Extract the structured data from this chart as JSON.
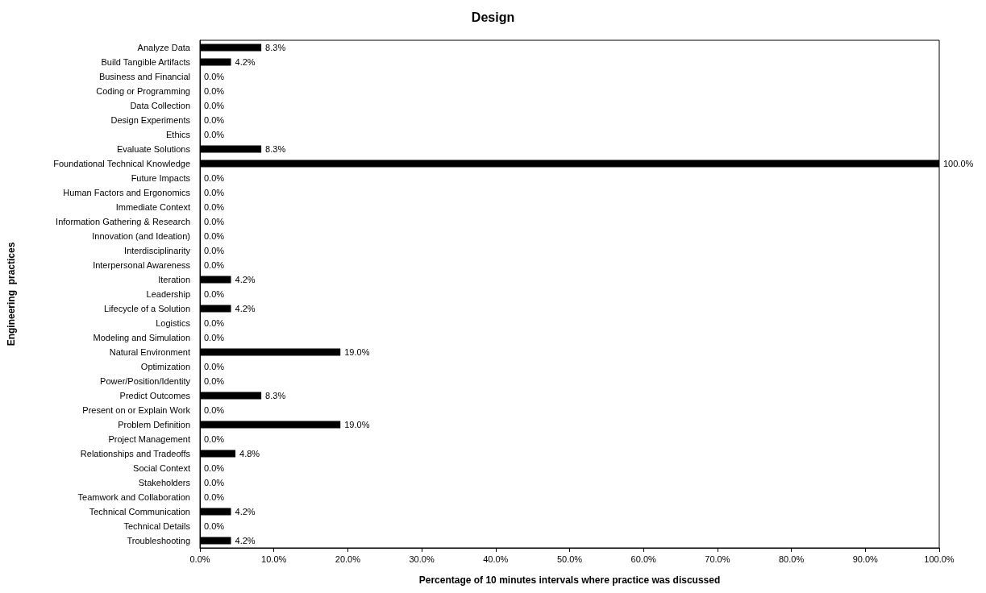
{
  "chart_data": {
    "type": "bar",
    "orientation": "horizontal",
    "title": "Design",
    "xlabel": "Percentage of 10 minutes intervals where practice was discussed",
    "ylabel": "Engineering  practices",
    "categories": [
      "Analyze Data",
      "Build Tangible Artifacts",
      "Business and Financial",
      "Coding or Programming",
      "Data Collection",
      "Design Experiments",
      "Ethics",
      "Evaluate Solutions",
      "Foundational Technical Knowledge",
      "Future Impacts",
      "Human Factors and Ergonomics",
      "Immediate Context",
      "Information Gathering & Research",
      "Innovation (and Ideation)",
      "Interdisciplinarity",
      "Interpersonal Awareness",
      "Iteration",
      "Leadership",
      "Lifecycle of a Solution",
      "Logistics",
      "Modeling and Simulation",
      "Natural Environment",
      "Optimization",
      "Power/Position/Identity",
      "Predict Outcomes",
      "Present on or Explain Work",
      "Problem Definition",
      "Project Management",
      "Relationships and Tradeoffs",
      "Social Context",
      "Stakeholders",
      "Teamwork and Collaboration",
      "Technical Communication",
      "Technical Details",
      "Troubleshooting"
    ],
    "values": [
      8.3,
      4.2,
      0,
      0,
      0,
      0,
      0,
      8.3,
      100,
      0,
      0,
      0,
      0,
      0,
      0,
      0,
      4.2,
      0,
      4.2,
      0,
      0,
      19.0,
      0,
      0,
      8.3,
      0,
      19.0,
      0,
      4.8,
      0,
      0,
      0,
      4.2,
      0,
      4.2
    ],
    "value_labels": [
      "8.3%",
      "4.2%",
      "0.0%",
      "0.0%",
      "0.0%",
      "0.0%",
      "0.0%",
      "8.3%",
      "100.0%",
      "0.0%",
      "0.0%",
      "0.0%",
      "0.0%",
      "0.0%",
      "0.0%",
      "0.0%",
      "4.2%",
      "0.0%",
      "4.2%",
      "0.0%",
      "0.0%",
      "19.0%",
      "0.0%",
      "0.0%",
      "8.3%",
      "0.0%",
      "19.0%",
      "0.0%",
      "4.8%",
      "0.0%",
      "0.0%",
      "0.0%",
      "4.2%",
      "0.0%",
      "4.2%"
    ],
    "color": "#000000",
    "xlim": [
      0,
      100
    ],
    "xticks": [
      {
        "value": 0,
        "label": "0.0%"
      },
      {
        "value": 10,
        "label": "10.0%"
      },
      {
        "value": 20,
        "label": "20.0%"
      },
      {
        "value": 30,
        "label": "30.0%"
      },
      {
        "value": 40,
        "label": "40.0%"
      },
      {
        "value": 50,
        "label": "50.0%"
      },
      {
        "value": 60,
        "label": "60.0%"
      },
      {
        "value": 70,
        "label": "70.0%"
      },
      {
        "value": 80,
        "label": "80.0%"
      },
      {
        "value": 90,
        "label": "90.0%"
      },
      {
        "value": 100,
        "label": "100.0%"
      }
    ]
  }
}
